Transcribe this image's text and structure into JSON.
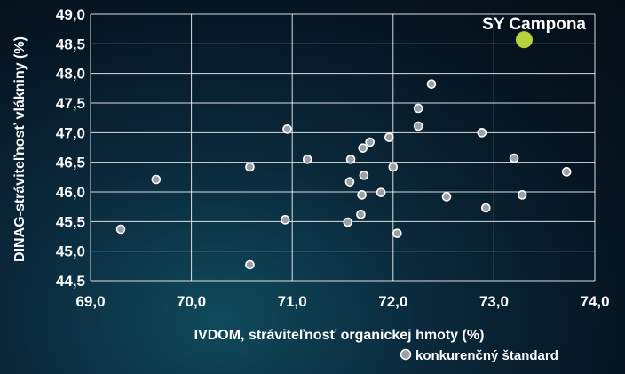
{
  "chart_data": {
    "type": "scatter",
    "xlabel": "IVDOM, stráviteľnosť organickej hmoty (%)",
    "ylabel": "DINAG-stráviteľnosť vlákniny (%)",
    "xlim": [
      69.0,
      74.0
    ],
    "ylim": [
      44.5,
      49.0
    ],
    "x_ticks": [
      "69,0",
      "70,0",
      "71,0",
      "72,0",
      "73,0",
      "74,0"
    ],
    "y_ticks": [
      "44,5",
      "45,0",
      "45,5",
      "46,0",
      "46,5",
      "47,0",
      "47,5",
      "48,0",
      "48,5",
      "49,0"
    ],
    "grid": true,
    "legend_position": "bottom-right",
    "series": [
      {
        "name": "konkurenčný štandard",
        "color": "#9aa0a6",
        "points": [
          {
            "x": 69.3,
            "y": 45.37
          },
          {
            "x": 69.65,
            "y": 46.21
          },
          {
            "x": 70.58,
            "y": 44.77
          },
          {
            "x": 70.58,
            "y": 46.42
          },
          {
            "x": 70.93,
            "y": 45.53
          },
          {
            "x": 70.95,
            "y": 47.06
          },
          {
            "x": 71.15,
            "y": 46.55
          },
          {
            "x": 71.55,
            "y": 45.49
          },
          {
            "x": 71.57,
            "y": 46.17
          },
          {
            "x": 71.58,
            "y": 46.55
          },
          {
            "x": 71.68,
            "y": 45.62
          },
          {
            "x": 71.69,
            "y": 45.95
          },
          {
            "x": 71.7,
            "y": 46.74
          },
          {
            "x": 71.71,
            "y": 46.28
          },
          {
            "x": 71.77,
            "y": 46.84
          },
          {
            "x": 71.88,
            "y": 45.99
          },
          {
            "x": 71.96,
            "y": 46.92
          },
          {
            "x": 72.0,
            "y": 46.42
          },
          {
            "x": 72.04,
            "y": 45.3
          },
          {
            "x": 72.25,
            "y": 47.11
          },
          {
            "x": 72.25,
            "y": 47.41
          },
          {
            "x": 72.38,
            "y": 47.82
          },
          {
            "x": 72.53,
            "y": 45.92
          },
          {
            "x": 72.88,
            "y": 47.0
          },
          {
            "x": 72.92,
            "y": 45.73
          },
          {
            "x": 73.2,
            "y": 46.57
          },
          {
            "x": 73.28,
            "y": 45.95
          },
          {
            "x": 73.72,
            "y": 46.34
          }
        ]
      },
      {
        "name": "SY Campona",
        "color": "#b6d33a",
        "points": [
          {
            "x": 73.3,
            "y": 48.57
          }
        ]
      }
    ],
    "annotations": [
      {
        "text": "SY Campona"
      }
    ],
    "legend": {
      "label": "konkurenčný štandard"
    }
  }
}
